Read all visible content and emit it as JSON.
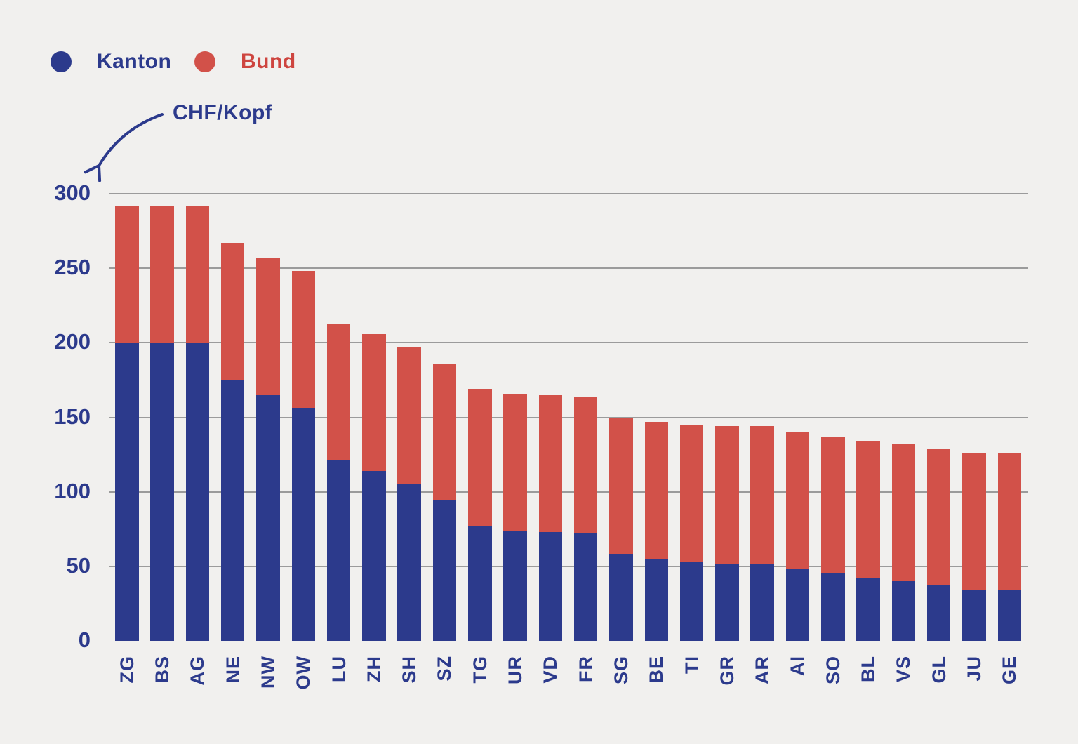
{
  "page": {
    "background_color": "#f1f0ee",
    "gridline_color": "#9b9b9b"
  },
  "legend": {
    "items": [
      {
        "label": "Kanton",
        "color": "#2c3a8c"
      },
      {
        "label": "Bund",
        "color": "#d25149",
        "text_color": "#ce453f"
      }
    ]
  },
  "annotation": {
    "text": "CHF/Kopf",
    "arrow_color": "#2c3a8c"
  },
  "chart_data": {
    "type": "bar",
    "stacked": true,
    "title": "",
    "xlabel": "",
    "ylabel": "CHF/Kopf",
    "ylim": [
      0,
      300
    ],
    "y_ticks": [
      0,
      50,
      100,
      150,
      200,
      250,
      300
    ],
    "grid": true,
    "legend_position": "top-left",
    "categories": [
      "ZG",
      "BS",
      "AG",
      "NE",
      "NW",
      "OW",
      "LU",
      "ZH",
      "SH",
      "SZ",
      "TG",
      "UR",
      "VD",
      "FR",
      "SG",
      "BE",
      "TI",
      "GR",
      "AR",
      "AI",
      "SO",
      "BL",
      "VS",
      "GL",
      "JU",
      "GE"
    ],
    "series": [
      {
        "name": "Kanton",
        "color": "#2c3a8c",
        "values": [
          200,
          200,
          200,
          175,
          165,
          156,
          121,
          114,
          105,
          94,
          77,
          74,
          73,
          72,
          58,
          55,
          53,
          52,
          52,
          48,
          45,
          42,
          40,
          37,
          34,
          34
        ]
      },
      {
        "name": "Bund",
        "color": "#d25149",
        "values": [
          92,
          92,
          92,
          92,
          92,
          92,
          92,
          92,
          92,
          92,
          92,
          92,
          92,
          92,
          92,
          92,
          92,
          92,
          92,
          92,
          92,
          92,
          92,
          92,
          92,
          92
        ]
      }
    ]
  }
}
